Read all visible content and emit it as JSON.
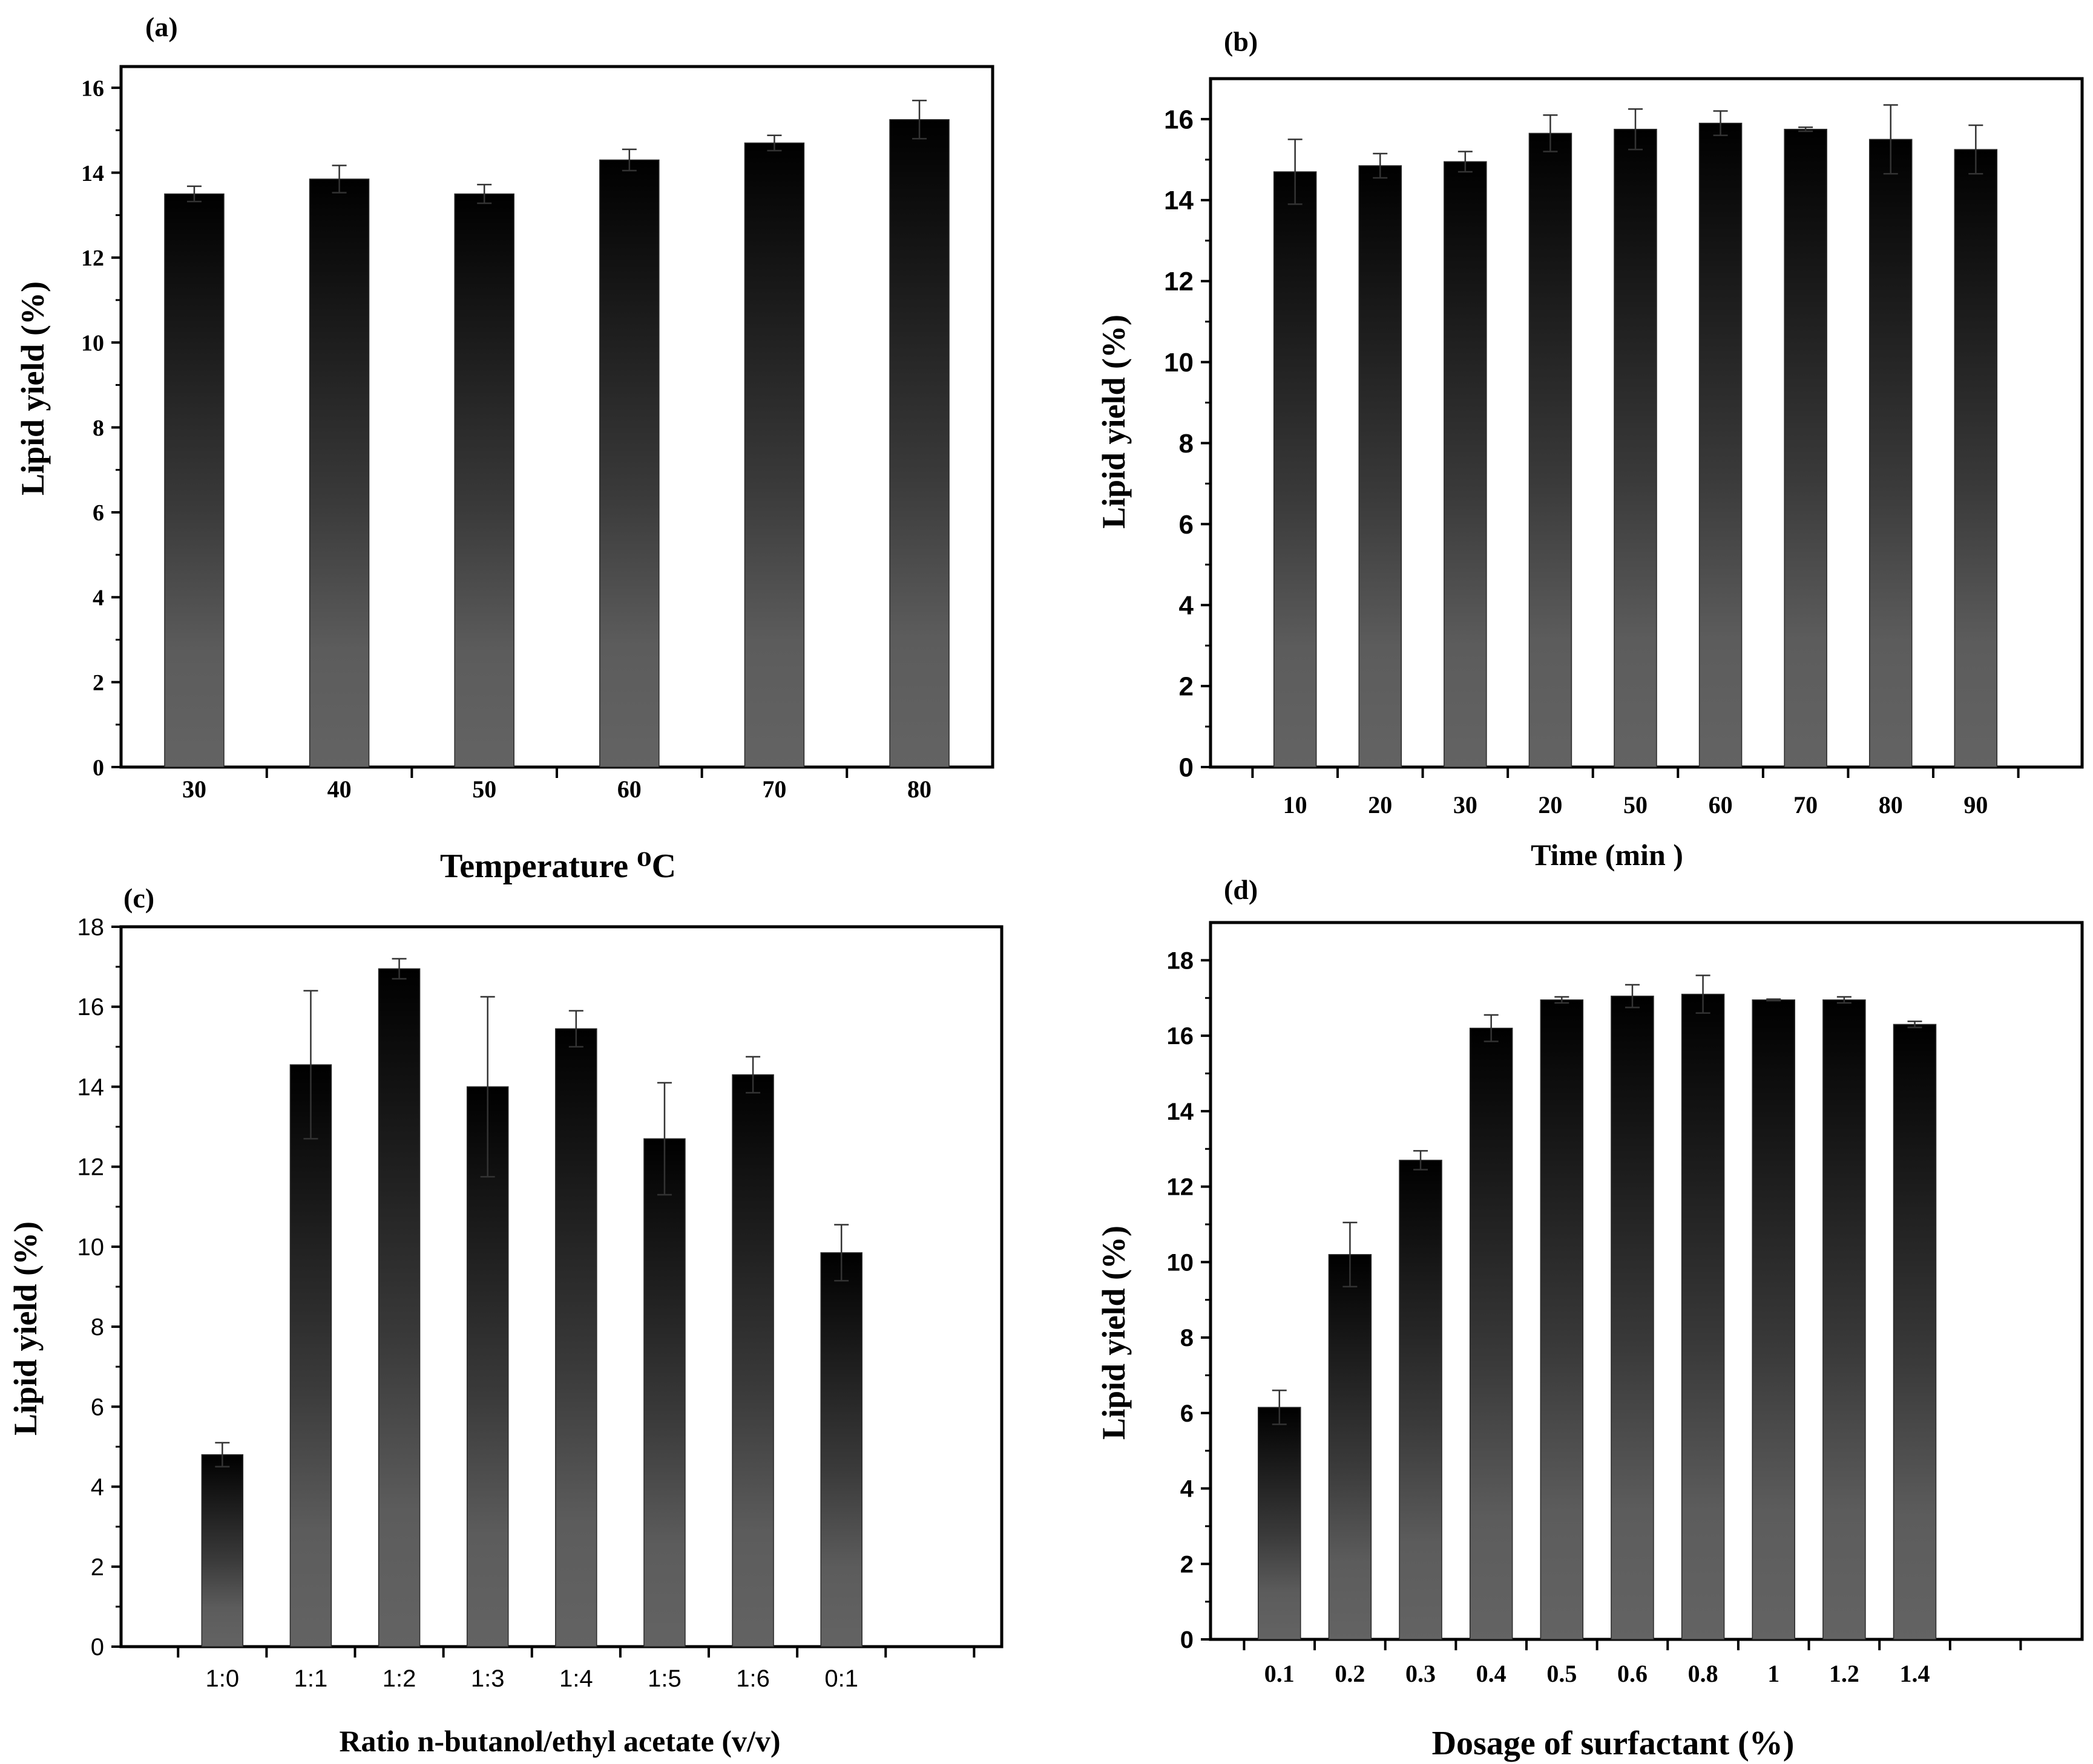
{
  "colors": {
    "bar_top": "#000000",
    "bar_bottom": "#5f5f5f",
    "axis": "#000000",
    "error_bar": "#333333"
  },
  "chart_data": [
    {
      "panel": "(a)",
      "type": "bar",
      "title": "",
      "xlabel": "Temperature ⁰C",
      "ylabel": "Lipid yield (%)",
      "categories": [
        "30",
        "40",
        "50",
        "60",
        "70",
        "80"
      ],
      "values": [
        13.5,
        13.85,
        13.5,
        14.3,
        14.7,
        15.25
      ],
      "errors": [
        0.18,
        0.32,
        0.22,
        0.25,
        0.18,
        0.45
      ],
      "ylim": [
        0,
        16.5
      ],
      "yticks": [
        0,
        2,
        4,
        6,
        8,
        10,
        12,
        14,
        16
      ],
      "ytick_labels": [
        "0",
        "2",
        "4",
        "6",
        "8",
        "10",
        "12",
        "14",
        "16"
      ],
      "grid": false,
      "legend": "none"
    },
    {
      "panel": "(b)",
      "type": "bar",
      "title": "",
      "xlabel": "Time (min )",
      "ylabel": "Lipid yield (%)",
      "categories": [
        "10",
        "20",
        "30",
        "20",
        "50",
        "60",
        "70",
        "80",
        "90"
      ],
      "values": [
        14.7,
        14.85,
        14.95,
        15.65,
        15.75,
        15.9,
        15.75,
        15.5,
        15.25
      ],
      "errors": [
        0.8,
        0.3,
        0.25,
        0.45,
        0.5,
        0.3,
        0.05,
        0.85,
        0.6
      ],
      "ylim": [
        0,
        17
      ],
      "yticks": [
        0,
        2,
        4,
        6,
        8,
        10,
        12,
        14,
        16
      ],
      "ytick_labels": [
        "0",
        "2",
        "4",
        "6",
        "8",
        "10",
        "12",
        "14",
        "16"
      ],
      "grid": false,
      "legend": "none"
    },
    {
      "panel": "(c)",
      "type": "bar",
      "title": "",
      "xlabel": "Ratio n-butanol/ethyl acetate (v/v)",
      "ylabel": "Lipid yield (%)",
      "categories": [
        "1:0",
        "1:1",
        "1:2",
        "1:3",
        "1:4",
        "1:5",
        "1:6",
        "0:1"
      ],
      "values": [
        4.8,
        14.55,
        16.95,
        14.0,
        15.45,
        12.7,
        14.3,
        9.85
      ],
      "errors": [
        0.3,
        1.85,
        0.25,
        2.25,
        0.45,
        1.4,
        0.45,
        0.7
      ],
      "ylim": [
        0,
        18
      ],
      "yticks": [
        0,
        2,
        4,
        6,
        8,
        10,
        12,
        14,
        16,
        18
      ],
      "ytick_labels": [
        "0",
        "2",
        "4",
        "6",
        "8",
        "10",
        "12",
        "14",
        "16",
        "18"
      ],
      "grid": false,
      "legend": "none"
    },
    {
      "panel": "(d)",
      "type": "bar",
      "title": "",
      "xlabel": "Dosage of  surfactant (%)",
      "ylabel": "Lipid yield (%)",
      "categories": [
        "0.1",
        "0.2",
        "0.3",
        "0.4",
        "0.5",
        "0.6",
        "0.8",
        "1",
        "1.2",
        "1.4"
      ],
      "values": [
        6.15,
        10.2,
        12.7,
        16.2,
        16.95,
        17.05,
        17.1,
        16.95,
        16.95,
        16.3
      ],
      "errors": [
        0.45,
        0.85,
        0.25,
        0.35,
        0.08,
        0.3,
        0.5,
        0.02,
        0.08,
        0.08
      ],
      "ylim": [
        0,
        19
      ],
      "yticks": [
        0,
        2,
        4,
        6,
        8,
        10,
        12,
        14,
        16,
        18
      ],
      "ytick_labels": [
        "0",
        "2",
        "4",
        "6",
        "8",
        "10",
        "12",
        "14",
        "16",
        "18"
      ],
      "grid": false,
      "legend": "none"
    }
  ]
}
